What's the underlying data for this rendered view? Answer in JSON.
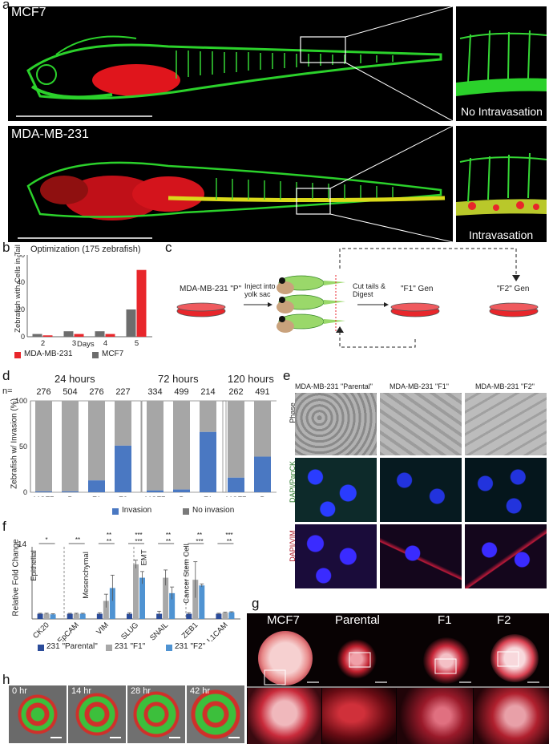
{
  "panel_letters": {
    "a": "a",
    "b": "b",
    "c": "c",
    "d": "d",
    "e": "e",
    "f": "f",
    "g": "g",
    "h": "h"
  },
  "panel_a": {
    "top_label": "MCF7",
    "bottom_label": "MDA-MB-231",
    "top_inset_caption": "No Intravasation",
    "bottom_inset_caption": "Intravasation"
  },
  "panel_b": {
    "title": "Optimization (175 zebrafish)",
    "ylabel": "Zebrafish with Cells in Tail",
    "xlabel": "Days",
    "legend": [
      {
        "label": "MDA-MB-231",
        "color": "#e8262b"
      },
      {
        "label": "MCF7",
        "color": "#6d6d6d"
      }
    ]
  },
  "panel_c": {
    "parental": "MDA-MB-231 \"P\"",
    "inject": "Inject into yolk sac",
    "cut": "Cut tails & Digest",
    "f1": "\"F1\" Gen",
    "f2": "\"F2\" Gen"
  },
  "panel_d": {
    "ylabel": "Zebrafish w/ Invasion (%)",
    "group_titles": [
      "24 hours",
      "72 hours",
      "120 hours"
    ],
    "n_prefix": "n=",
    "legend": [
      {
        "label": "Invasion",
        "color": "#4a78c2"
      },
      {
        "label": "No invasion",
        "color": "#7a7a7a"
      }
    ]
  },
  "panel_e": {
    "col_titles": [
      "MDA-MB-231 \"Parental\"",
      "MDA-MB-231 \"F1\"",
      "MDA-MB-231 \"F2\""
    ],
    "row_labels": [
      "Phase",
      "DAPI/PanCK",
      "DAPI/VIM"
    ]
  },
  "panel_f": {
    "ylabel": "Relative Fold Change",
    "ymax_label": "14",
    "ytick_labels": [
      "0",
      "7",
      "14"
    ],
    "categories": [
      "CK20",
      "EpCAM",
      "VIM",
      "SLUG",
      "SNAIL",
      "ZEB1",
      "L1CAM"
    ],
    "group_labels": [
      "Epithelial",
      "Mesenchymal",
      "EMT",
      "Cancer Stem Cell"
    ],
    "sig_labels": [
      "*",
      "**",
      "**",
      "**",
      "***",
      "***",
      "**",
      "**",
      "**",
      "***",
      "***",
      "**"
    ],
    "legend": [
      {
        "label": "231 \"Parental\"",
        "color": "#2b4c9a"
      },
      {
        "label": "231 \"F1\"",
        "color": "#a8a8a8"
      },
      {
        "label": "231 \"F2\"",
        "color": "#4f93d2"
      }
    ]
  },
  "panel_g": {
    "col_titles": [
      "MCF7",
      "Parental",
      "F1",
      "F2"
    ]
  },
  "panel_h": {
    "times": [
      "0 hr",
      "14 hr",
      "28 hr",
      "42 hr"
    ]
  },
  "chart_data": [
    {
      "type": "bar",
      "title": "Optimization (175 zebrafish)",
      "xlabel": "Days",
      "ylabel": "Zebrafish with Cells in Tail",
      "categories": [
        "2",
        "3",
        "4",
        "5"
      ],
      "ylim": [
        0,
        60
      ],
      "yticks": [
        0,
        20,
        40,
        60
      ],
      "series": [
        {
          "name": "MCF7",
          "values": [
            2,
            4,
            4,
            20
          ]
        },
        {
          "name": "MDA-MB-231",
          "values": [
            1,
            2,
            2,
            49
          ]
        }
      ]
    },
    {
      "type": "bar",
      "ylabel": "Zebrafish w/ Invasion (%)",
      "ylim": [
        0,
        100
      ],
      "yticks": [
        0,
        50,
        100
      ],
      "groups": [
        {
          "title": "24 hours",
          "categories": [
            "MCF7",
            "P",
            "F1",
            "F2"
          ],
          "n": [
            "276",
            "504",
            "276",
            "227"
          ],
          "invasion": [
            1,
            1,
            13,
            51
          ]
        },
        {
          "title": "72 hours",
          "categories": [
            "MCF7",
            "P",
            "F1"
          ],
          "n": [
            "334",
            "499",
            "214"
          ],
          "invasion": [
            2,
            3,
            66
          ]
        },
        {
          "title": "120 hours",
          "categories": [
            "MCF7",
            "P"
          ],
          "n": [
            "262",
            "491"
          ],
          "invasion": [
            16,
            39
          ]
        }
      ],
      "series": [
        {
          "name": "Invasion"
        },
        {
          "name": "No invasion"
        }
      ]
    },
    {
      "type": "bar",
      "ylabel": "Relative Fold Change",
      "ylim": [
        0,
        14
      ],
      "categories": [
        "CK20",
        "EpCAM",
        "VIM",
        "SLUG",
        "SNAIL",
        "ZEB1",
        "L1CAM"
      ],
      "series": [
        {
          "name": "231 \"Parental\"",
          "values": [
            1,
            1,
            1,
            1,
            1,
            1,
            1
          ],
          "errors": [
            0.1,
            0.1,
            0.2,
            0.2,
            0.5,
            0.2,
            0.1
          ]
        },
        {
          "name": "231 \"F1\"",
          "values": [
            1,
            1,
            3.5,
            10.6,
            8,
            7.6,
            1.2
          ],
          "errors": [
            0.1,
            0.1,
            1.3,
            0.8,
            1.5,
            3.5,
            0.1
          ]
        },
        {
          "name": "231 \"F2\"",
          "values": [
            0.9,
            1,
            6,
            8,
            5,
            6.5,
            1.3
          ],
          "errors": [
            0.1,
            0.1,
            2.5,
            1.2,
            1.2,
            0.3,
            0.1
          ]
        }
      ]
    }
  ]
}
